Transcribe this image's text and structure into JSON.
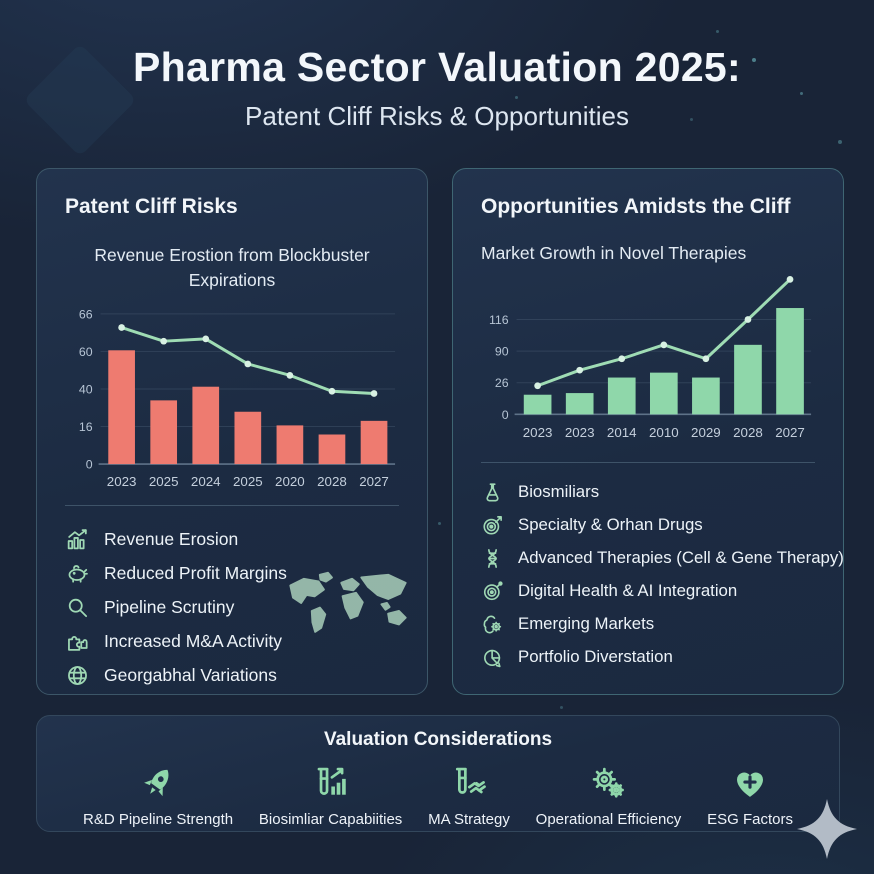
{
  "page": {
    "title": "Pharma Sector Valuation 2025:",
    "subtitle": "Patent Cliff Risks & Opportunities"
  },
  "left_panel": {
    "heading": "Patent Cliff Risks",
    "chart_title_line1": "Revenue Erostion from Blockbuster",
    "chart_title_line2": "Expirations",
    "legend": [
      {
        "icon": "bar-chart-icon",
        "label": "Revenue Erosion"
      },
      {
        "icon": "piggy-bank-icon",
        "label": "Reduced Profit Margins"
      },
      {
        "icon": "magnifier-icon",
        "label": "Pipeline Scrutiny"
      },
      {
        "icon": "puzzle-icon",
        "label": "Increased M&A Activity"
      },
      {
        "icon": "globe-icon",
        "label": "Georgabhal Variations"
      }
    ]
  },
  "right_panel": {
    "heading": "Opportunities Amidsts the Cliff",
    "chart_title": "Market Growth in Novel Therapies",
    "items": [
      {
        "icon": "flask-icon",
        "label": "Biosmiliars"
      },
      {
        "icon": "target-icon",
        "label": "Specialty & Orhan Drugs"
      },
      {
        "icon": "dna-icon",
        "label": "Advanced Therapies (Cell & Gene Therapy)"
      },
      {
        "icon": "target-ai-icon",
        "label": "Digital Health & AI Integration"
      },
      {
        "icon": "brain-gear-icon",
        "label": "Emerging Markets"
      },
      {
        "icon": "globe-pie-icon",
        "label": "Portfolio Diverstation"
      }
    ]
  },
  "bottom_panel": {
    "heading": "Valuation Considerations",
    "items": [
      {
        "icon": "rocket-icon",
        "label": "R&D Pipeline Strength"
      },
      {
        "icon": "testtube-chart-icon",
        "label": "Biosimliar Capabiities"
      },
      {
        "icon": "testtube-handshake-icon",
        "label": "MA Strategy"
      },
      {
        "icon": "gears-icon",
        "label": "Operational Efficiency"
      },
      {
        "icon": "heart-icon",
        "label": "ESG Factors"
      }
    ]
  },
  "chart_data": [
    {
      "type": "bar",
      "title": "Revenue Erostion from Blockbuster Expirations",
      "categories": [
        "2023",
        "2025",
        "2024",
        "2025",
        "2020",
        "2028",
        "2027"
      ],
      "series": [
        {
          "name": "revenue-bars",
          "type": "bar",
          "color": "#ee7b70",
          "values": [
            50,
            28,
            34,
            23,
            17,
            13,
            19
          ]
        },
        {
          "name": "erosion-line",
          "type": "line",
          "color": "#9fdcb4",
          "values": [
            60,
            54,
            55,
            44,
            39,
            32,
            31
          ]
        }
      ],
      "ytick_labels": [
        "66",
        "60",
        "40",
        "16",
        "0"
      ],
      "ylim": [
        0,
        66
      ],
      "grid": true,
      "legend_position": "none"
    },
    {
      "type": "bar",
      "title": "Market Growth in Novel Therapies",
      "categories": [
        "2023",
        "2023",
        "2014",
        "2010",
        "2029",
        "2028",
        "2027"
      ],
      "series": [
        {
          "name": "growth-bars",
          "type": "bar",
          "color": "#8fd7aa",
          "values": [
            24,
            26,
            45,
            51,
            45,
            85,
            130
          ]
        },
        {
          "name": "growth-line",
          "type": "line",
          "color": "#9fdcb4",
          "values": [
            35,
            54,
            68,
            85,
            68,
            116,
            165
          ]
        }
      ],
      "ytick_labels": [
        "116",
        "90",
        "26",
        "0"
      ],
      "ylim": [
        0,
        140
      ],
      "grid": true,
      "legend_position": "none"
    }
  ],
  "colors": {
    "background": "#192437",
    "panel": "#1e2c43",
    "accent_green": "#8fd7aa",
    "accent_salmon": "#ee7b70",
    "line_green": "#9fdcb4",
    "text": "#eef3f9"
  }
}
